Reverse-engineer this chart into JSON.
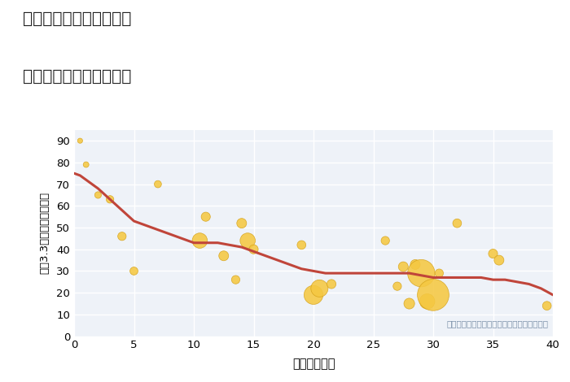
{
  "title_line1": "三重県津市安濃町野口の",
  "title_line2": "築年数別中古戸建て価格",
  "xlabel": "築年数（年）",
  "ylabel": "坪（3.3㎡）単価（万円）",
  "annotation": "円の大きさは、取引のあった物件面積を示す",
  "scatter_color": "#f5c842",
  "scatter_edge_color": "#d4a017",
  "line_color": "#c0453a",
  "xlim": [
    0,
    40
  ],
  "ylim": [
    0,
    95
  ],
  "xticks": [
    0,
    5,
    10,
    15,
    20,
    25,
    30,
    35,
    40
  ],
  "yticks": [
    0,
    10,
    20,
    30,
    40,
    50,
    60,
    70,
    80,
    90
  ],
  "scatter_x": [
    0.5,
    1.0,
    2.0,
    3.0,
    4.0,
    5.0,
    7.0,
    10.5,
    11.0,
    12.5,
    13.5,
    14.0,
    14.5,
    15.0,
    19.0,
    20.0,
    20.5,
    21.5,
    26.0,
    27.0,
    27.5,
    28.0,
    28.5,
    29.0,
    29.5,
    30.0,
    30.5,
    32.0,
    35.0,
    35.5,
    39.5
  ],
  "scatter_y": [
    90,
    79,
    65,
    63,
    46,
    30,
    70,
    44,
    55,
    37,
    26,
    52,
    44,
    40,
    42,
    19,
    22,
    24,
    44,
    23,
    32,
    15,
    33,
    29,
    16,
    19,
    29,
    52,
    38,
    35,
    14
  ],
  "scatter_size": [
    20,
    25,
    35,
    45,
    55,
    50,
    40,
    180,
    65,
    75,
    55,
    75,
    180,
    65,
    60,
    280,
    230,
    65,
    55,
    55,
    75,
    90,
    75,
    580,
    180,
    780,
    55,
    60,
    65,
    75,
    60
  ],
  "trend_x": [
    0,
    0.5,
    1,
    1.5,
    2,
    3,
    4,
    5,
    6,
    7,
    8,
    9,
    10,
    11,
    12,
    13,
    14,
    15,
    16,
    17,
    18,
    19,
    20,
    21,
    22,
    23,
    24,
    25,
    26,
    27,
    28,
    29,
    30,
    31,
    32,
    33,
    34,
    35,
    36,
    37,
    38,
    39,
    40
  ],
  "trend_y": [
    75,
    74,
    72,
    70,
    68,
    63,
    58,
    53,
    51,
    49,
    47,
    45,
    43,
    43,
    43,
    42,
    41,
    39,
    37,
    35,
    33,
    31,
    30,
    29,
    29,
    29,
    29,
    29,
    29,
    29,
    29,
    28,
    27,
    27,
    27,
    27,
    27,
    26,
    26,
    25,
    24,
    22,
    19
  ]
}
